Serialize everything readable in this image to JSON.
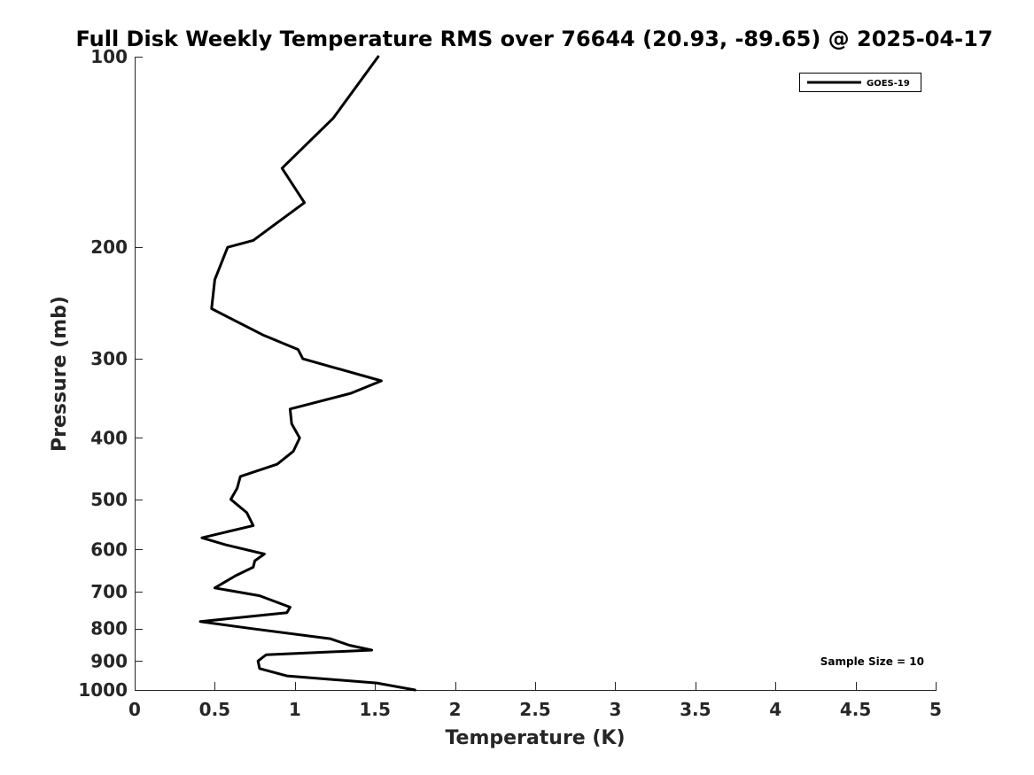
{
  "chart_data": {
    "type": "line",
    "title": "Full Disk Weekly Temperature RMS over 76644 (20.93, -89.65) @ 2025-04-17",
    "xlabel": "Temperature (K)",
    "ylabel": "Pressure (mb)",
    "xlim": [
      0,
      5
    ],
    "ylim": [
      100,
      1000
    ],
    "y_scale": "log",
    "y_reversed": true,
    "x_ticks": [
      0,
      0.5,
      1,
      1.5,
      2,
      2.5,
      3,
      3.5,
      4,
      4.5,
      5
    ],
    "x_tick_labels": [
      "0",
      "0.5",
      "1",
      "1.5",
      "2",
      "2.5",
      "3",
      "3.5",
      "4",
      "4.5",
      "5"
    ],
    "y_ticks": [
      100,
      200,
      300,
      400,
      500,
      600,
      700,
      800,
      900,
      1000
    ],
    "y_tick_labels": [
      "100",
      "200",
      "300",
      "400",
      "500",
      "600",
      "700",
      "800",
      "900",
      "1000"
    ],
    "legend": {
      "entries": [
        "GOES-19"
      ],
      "location": "top-right"
    },
    "annotation": "Sample Size = 10",
    "series": [
      {
        "name": "GOES-19",
        "color": "#000000",
        "points": [
          [
            1.52,
            100
          ],
          [
            1.24,
            125
          ],
          [
            0.92,
            150
          ],
          [
            1.06,
            170
          ],
          [
            0.74,
            195
          ],
          [
            0.58,
            200
          ],
          [
            0.5,
            225
          ],
          [
            0.48,
            250
          ],
          [
            0.8,
            275
          ],
          [
            1.02,
            290
          ],
          [
            1.05,
            300
          ],
          [
            1.54,
            325
          ],
          [
            1.35,
            340
          ],
          [
            0.97,
            360
          ],
          [
            0.98,
            380
          ],
          [
            1.03,
            400
          ],
          [
            0.99,
            420
          ],
          [
            0.89,
            440
          ],
          [
            0.66,
            460
          ],
          [
            0.64,
            480
          ],
          [
            0.6,
            500
          ],
          [
            0.7,
            525
          ],
          [
            0.74,
            550
          ],
          [
            0.42,
            575
          ],
          [
            0.57,
            590
          ],
          [
            0.81,
            610
          ],
          [
            0.75,
            625
          ],
          [
            0.74,
            640
          ],
          [
            0.63,
            660
          ],
          [
            0.5,
            690
          ],
          [
            0.78,
            710
          ],
          [
            0.97,
            740
          ],
          [
            0.95,
            755
          ],
          [
            0.41,
            780
          ],
          [
            0.73,
            800
          ],
          [
            1.22,
            830
          ],
          [
            1.34,
            850
          ],
          [
            1.48,
            865
          ],
          [
            0.82,
            880
          ],
          [
            0.77,
            900
          ],
          [
            0.78,
            925
          ],
          [
            0.95,
            950
          ],
          [
            1.51,
            975
          ],
          [
            1.75,
            1000
          ]
        ]
      }
    ]
  }
}
